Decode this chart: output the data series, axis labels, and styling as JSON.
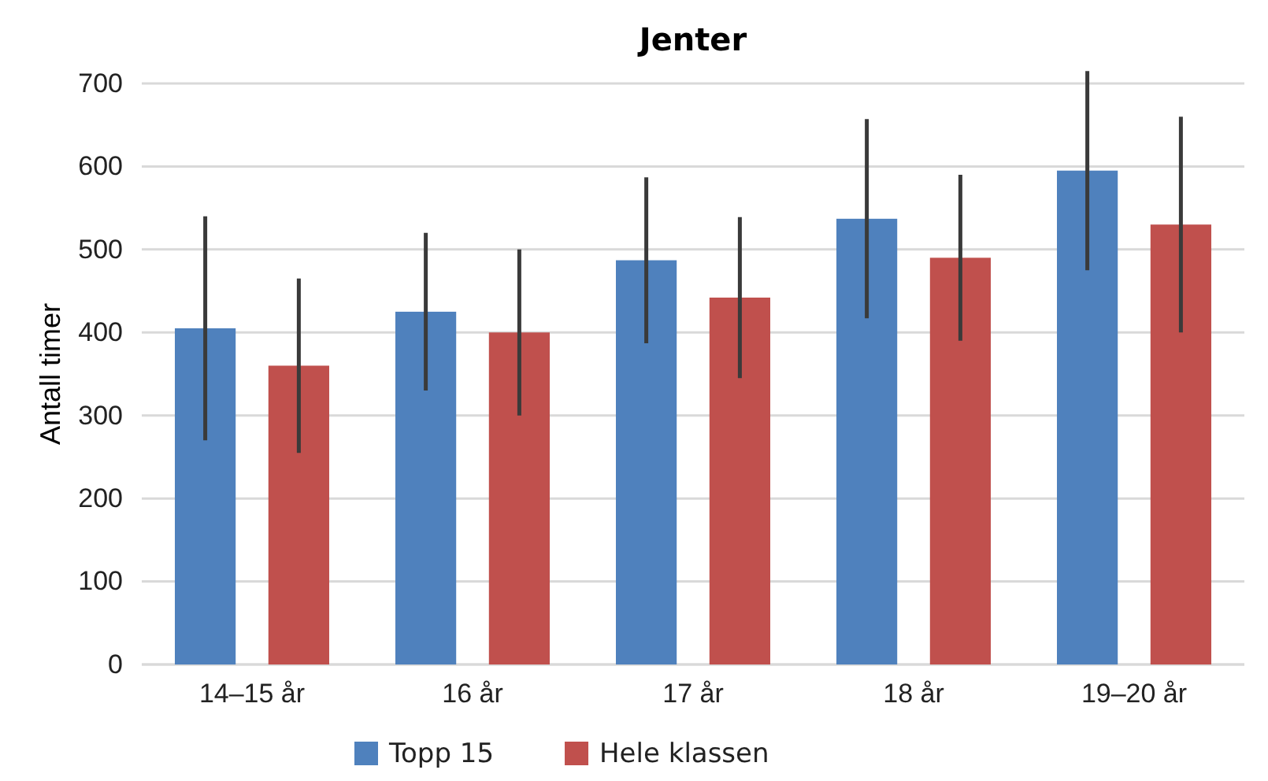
{
  "chart_data": {
    "type": "bar",
    "title": "Jenter",
    "ylabel": "Antall timer",
    "categories": [
      "14–15 år",
      "16 år",
      "17 år",
      "18 år",
      "19–20 år"
    ],
    "series": [
      {
        "name": "Topp 15",
        "color": "#4f81bd",
        "values": [
          405,
          425,
          487,
          537,
          595
        ],
        "errors": [
          135,
          95,
          100,
          120,
          120
        ]
      },
      {
        "name": "Hele klassen",
        "color": "#c0504d",
        "values": [
          360,
          400,
          442,
          490,
          530
        ],
        "errors": [
          105,
          100,
          97,
          100,
          130
        ]
      }
    ],
    "ylim": [
      0,
      700
    ],
    "yticks": [
      0,
      100,
      200,
      300,
      400,
      500,
      600,
      700
    ],
    "grid": "y",
    "legend": "bottom"
  }
}
